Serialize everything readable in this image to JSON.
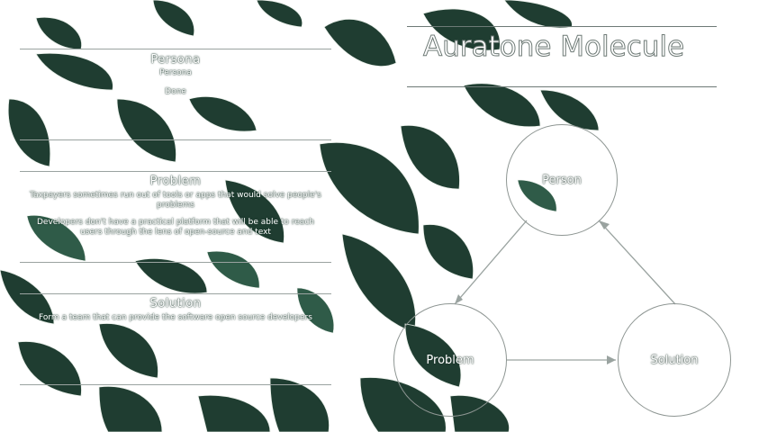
{
  "title": "Auratone Molecule",
  "persona": {
    "title": "Persona",
    "lines": [
      "Persona",
      "Done"
    ]
  },
  "problem_box": {
    "title": "Problem",
    "text1": "Taxpayers sometimes run out of tools or apps that would solve people's problems",
    "text2": "Developers don't have a practical platform that will be able to reach users through the lens of open-source and text"
  },
  "solution_box": {
    "title": "Solution",
    "text": "Form a team that can provide the software open source developers"
  },
  "diagram": {
    "nodes": [
      {
        "id": "persona",
        "label": "Person"
      },
      {
        "id": "problem",
        "label": "Problem"
      },
      {
        "id": "solution",
        "label": "Solution"
      }
    ]
  },
  "colors": {
    "leaf_dark": "#1f3d31",
    "leaf_mid": "#2f5b48",
    "line": "#9aa3a0"
  }
}
